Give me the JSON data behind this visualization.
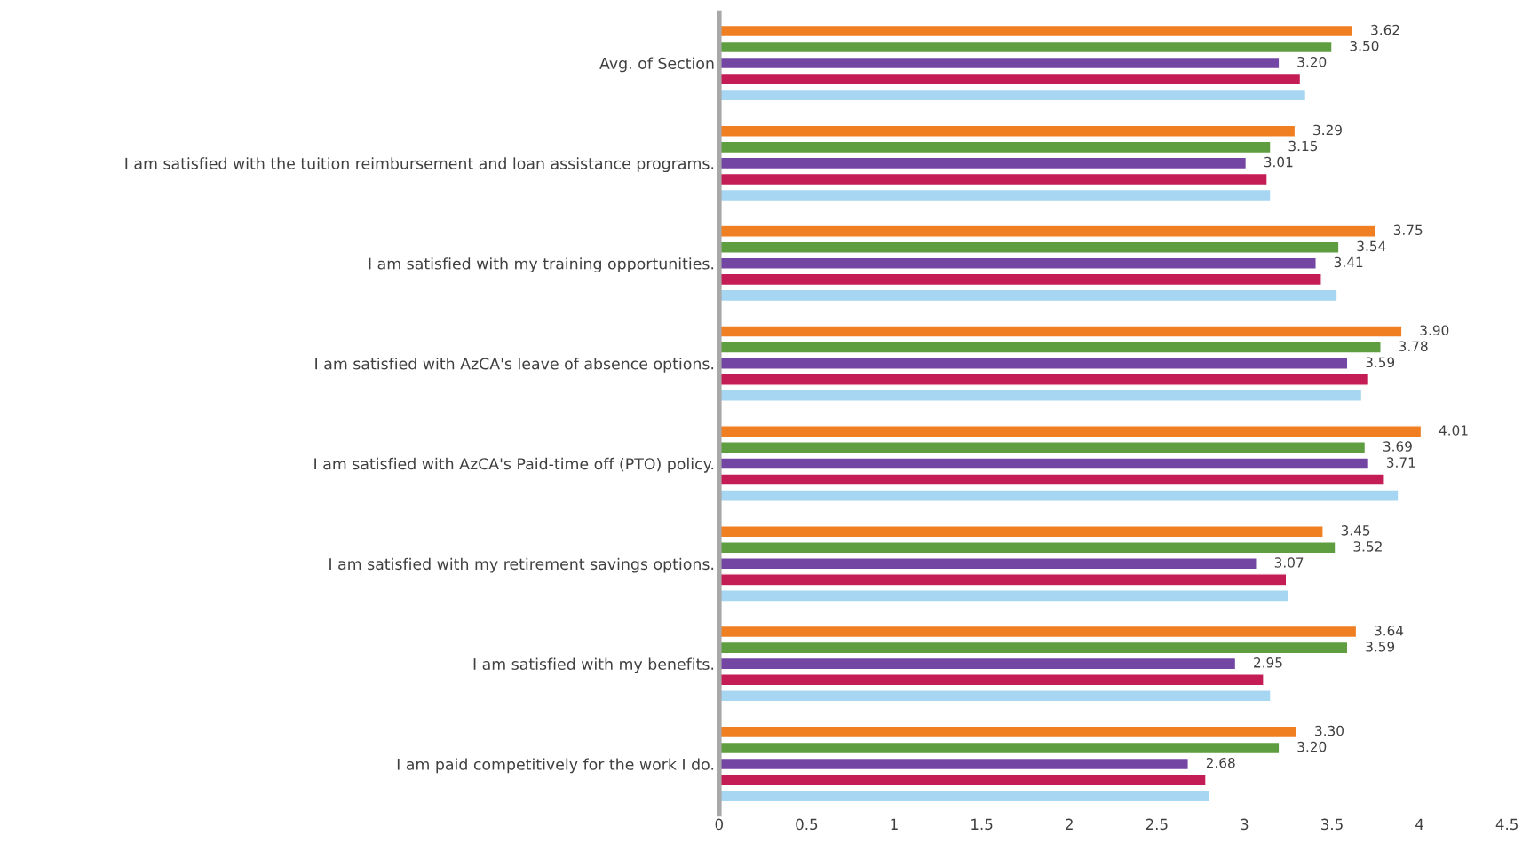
{
  "chart_data": {
    "type": "bar",
    "orientation": "horizontal",
    "categories": [
      "Avg. of Section",
      "I am satisfied with the tuition reimbursement and loan assistance programs.",
      "I am satisfied with my training opportunities.",
      "I am satisfied with AzCA's leave of absence options.",
      "I am satisfied with AzCA's Paid-time off (PTO) policy.",
      "I am satisfied with my retirement savings options.",
      "I am satisfied with my benefits.",
      "I am paid competitively for the work I do."
    ],
    "series": [
      {
        "color": "#f07f22",
        "values": [
          3.62,
          3.29,
          3.75,
          3.9,
          4.01,
          3.45,
          3.64,
          3.3
        ],
        "value_labels": [
          "3.62",
          "3.29",
          "3.75",
          "3.90",
          "4.01",
          "3.45",
          "3.64",
          "3.30"
        ]
      },
      {
        "color": "#5e9e40",
        "values": [
          3.5,
          3.15,
          3.54,
          3.78,
          3.69,
          3.52,
          3.59,
          3.2
        ],
        "value_labels": [
          "3.50",
          "3.15",
          "3.54",
          "3.78",
          "3.69",
          "3.52",
          "3.59",
          "3.20"
        ]
      },
      {
        "color": "#7446a4",
        "values": [
          3.2,
          3.01,
          3.41,
          3.59,
          3.71,
          3.07,
          2.95,
          2.68
        ],
        "value_labels": [
          "3.20",
          "3.01",
          "3.41",
          "3.59",
          "3.71",
          "3.07",
          "2.95",
          "2.68"
        ]
      },
      {
        "color": "#c41c54",
        "values": [
          3.32,
          3.13,
          3.44,
          3.71,
          3.8,
          3.24,
          3.11,
          2.78
        ]
      },
      {
        "color": "#a6d6f2",
        "values": [
          3.35,
          3.15,
          3.53,
          3.67,
          3.88,
          3.25,
          3.15,
          2.8
        ]
      }
    ],
    "xlim": [
      0,
      4.5
    ],
    "xticks": [
      0,
      0.5,
      1,
      1.5,
      2,
      2.5,
      3,
      3.5,
      4,
      4.5
    ],
    "grid": false,
    "legend": false
  }
}
